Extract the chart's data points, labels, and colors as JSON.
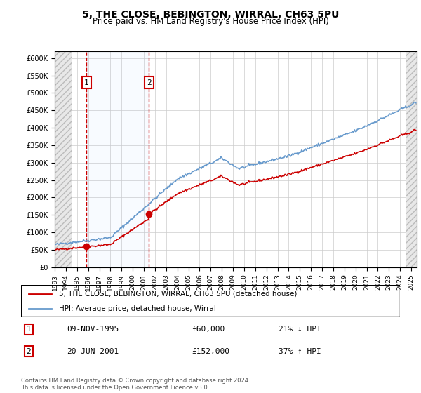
{
  "title": "5, THE CLOSE, BEBINGTON, WIRRAL, CH63 5PU",
  "subtitle": "Price paid vs. HM Land Registry's House Price Index (HPI)",
  "ylabel": "",
  "ylim": [
    0,
    620000
  ],
  "yticks": [
    0,
    50000,
    100000,
    150000,
    200000,
    250000,
    300000,
    350000,
    400000,
    450000,
    500000,
    550000,
    600000
  ],
  "price_paid_color": "#cc0000",
  "hpi_color": "#6699cc",
  "background_color": "#ffffff",
  "grid_color": "#cccccc",
  "hatch_color": "#dddddd",
  "sale1_date": "1995-11-09",
  "sale1_price": 60000,
  "sale1_label": "1",
  "sale1_x": 1995.86,
  "sale2_date": "2001-06-20",
  "sale2_price": 152000,
  "sale2_label": "2",
  "sale2_x": 2001.47,
  "legend_entry1": "5, THE CLOSE, BEBINGTON, WIRRAL, CH63 5PU (detached house)",
  "legend_entry2": "HPI: Average price, detached house, Wirral",
  "table_row1_num": "1",
  "table_row1_date": "09-NOV-1995",
  "table_row1_price": "£60,000",
  "table_row1_hpi": "21% ↓ HPI",
  "table_row2_num": "2",
  "table_row2_date": "20-JUN-2001",
  "table_row2_price": "£152,000",
  "table_row2_hpi": "37% ↑ HPI",
  "footnote": "Contains HM Land Registry data © Crown copyright and database right 2024.\nThis data is licensed under the Open Government Licence v3.0."
}
